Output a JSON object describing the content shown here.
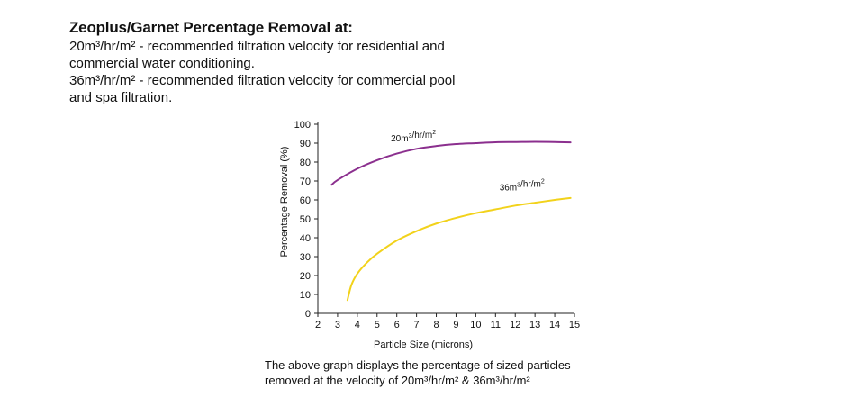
{
  "intro": {
    "title": "Zeoplus/Garnet Percentage Removal at:",
    "lines": [
      "20m³/hr/m² - recommended filtration velocity for residential and",
      "commercial water conditioning.",
      "36m³/hr/m² - recommended filtration velocity for commercial pool",
      "and spa filtration."
    ]
  },
  "caption": {
    "line1": "The above graph displays the percentage of sized particles",
    "line2": "removed at the velocity of 20m³/hr/m² & 36m³/hr/m²"
  },
  "chart_data": {
    "type": "line",
    "title": "",
    "xlabel": "Particle Size (microns)",
    "ylabel": "Percentage Removal (%)",
    "xlim": [
      2,
      15
    ],
    "ylim": [
      0,
      100
    ],
    "xticks": [
      2,
      3,
      4,
      5,
      6,
      7,
      8,
      9,
      10,
      11,
      12,
      13,
      14,
      15
    ],
    "yticks": [
      0,
      10,
      20,
      30,
      40,
      50,
      60,
      70,
      80,
      90,
      100
    ],
    "grid": false,
    "legend": "inline labels",
    "series": [
      {
        "name": "20m³/hr/m²",
        "color": "#8b2f8e",
        "x": [
          2.7,
          3,
          4,
          5,
          6,
          7,
          8,
          9,
          10,
          11,
          12,
          13,
          14,
          14.8
        ],
        "y": [
          68,
          70.5,
          76.5,
          81,
          84.5,
          87,
          88.5,
          89.5,
          90,
          90.5,
          90.6,
          90.7,
          90.6,
          90.4
        ]
      },
      {
        "name": "36m³/hr/m²",
        "color": "#f2d21b",
        "x": [
          3.5,
          3.7,
          4,
          4.5,
          5,
          6,
          7,
          8,
          9,
          10,
          11,
          12,
          13,
          14,
          14.8
        ],
        "y": [
          7,
          15,
          21,
          27,
          31.5,
          38.5,
          43.5,
          47.5,
          50.5,
          53,
          55,
          57,
          58.5,
          60,
          61
        ]
      }
    ],
    "annotations": [
      {
        "text": "20m³/hr/m²",
        "x": 5.7,
        "y": 91
      },
      {
        "text": "36m³/hr/m²",
        "x": 11.2,
        "y": 65
      }
    ]
  }
}
